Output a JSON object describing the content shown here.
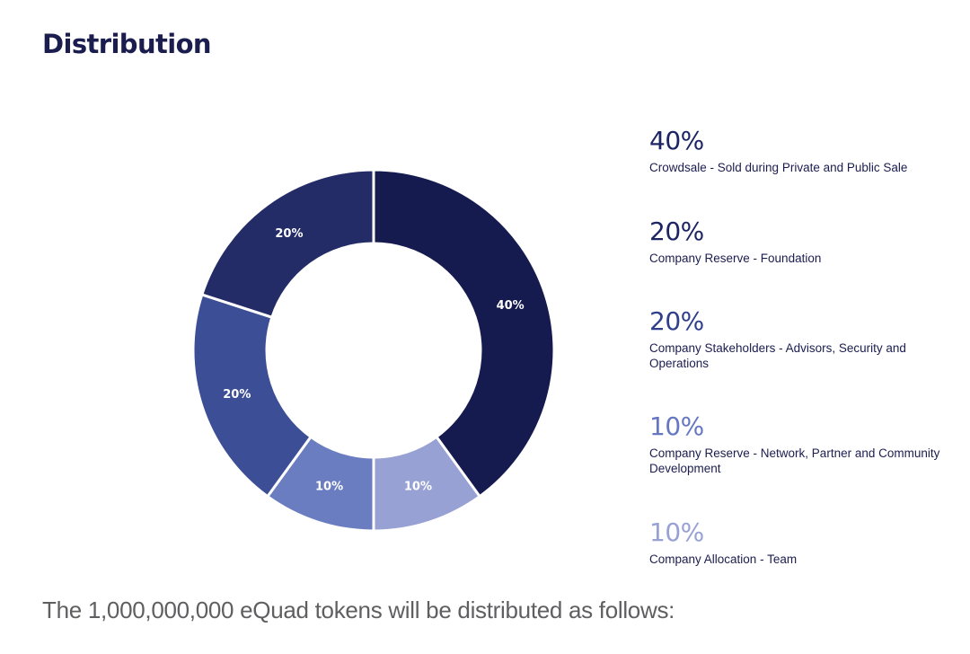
{
  "header": {
    "title": "Distribution"
  },
  "footer": {
    "text": "The 1,000,000,000 eQuad tokens will be distributed as follows:"
  },
  "chart_data": {
    "type": "pie",
    "variant": "donut",
    "title": "Distribution",
    "total_tokens": "1,000,000,000",
    "unit": "%",
    "start": "top",
    "direction": "clockwise",
    "slices": [
      {
        "label": "Crowdsale - Sold during Private and Public Sale",
        "value": 40,
        "display": "40%",
        "color": "#151a4f"
      },
      {
        "label": "Company Allocation - Team",
        "value": 10,
        "display": "10%",
        "color": "#98a1d4"
      },
      {
        "label": "Company Reserve - Network, Partner and Community Development",
        "value": 10,
        "display": "10%",
        "color": "#6a7dc1"
      },
      {
        "label": "Company Stakeholders - Advisors, Security and Operations",
        "value": 20,
        "display": "20%",
        "color": "#3c4e95"
      },
      {
        "label": "Company Reserve - Foundation",
        "value": 20,
        "display": "20%",
        "color": "#242c68"
      }
    ],
    "legend": [
      {
        "pct": "40%",
        "desc": "Crowdsale - Sold during Private and Public Sale",
        "color": "#1d2463"
      },
      {
        "pct": "20%",
        "desc": "Company Reserve - Foundation",
        "color": "#1d2463"
      },
      {
        "pct": "20%",
        "desc": "Company Stakeholders - Advisors, Security and Operations",
        "color": "#2f3f8c"
      },
      {
        "pct": "10%",
        "desc": "Company Reserve - Network, Partner and Community Development",
        "color": "#6577c2"
      },
      {
        "pct": "10%",
        "desc": "Company Allocation - Team",
        "color": "#98a1d4"
      }
    ],
    "legend_placement": "right"
  }
}
